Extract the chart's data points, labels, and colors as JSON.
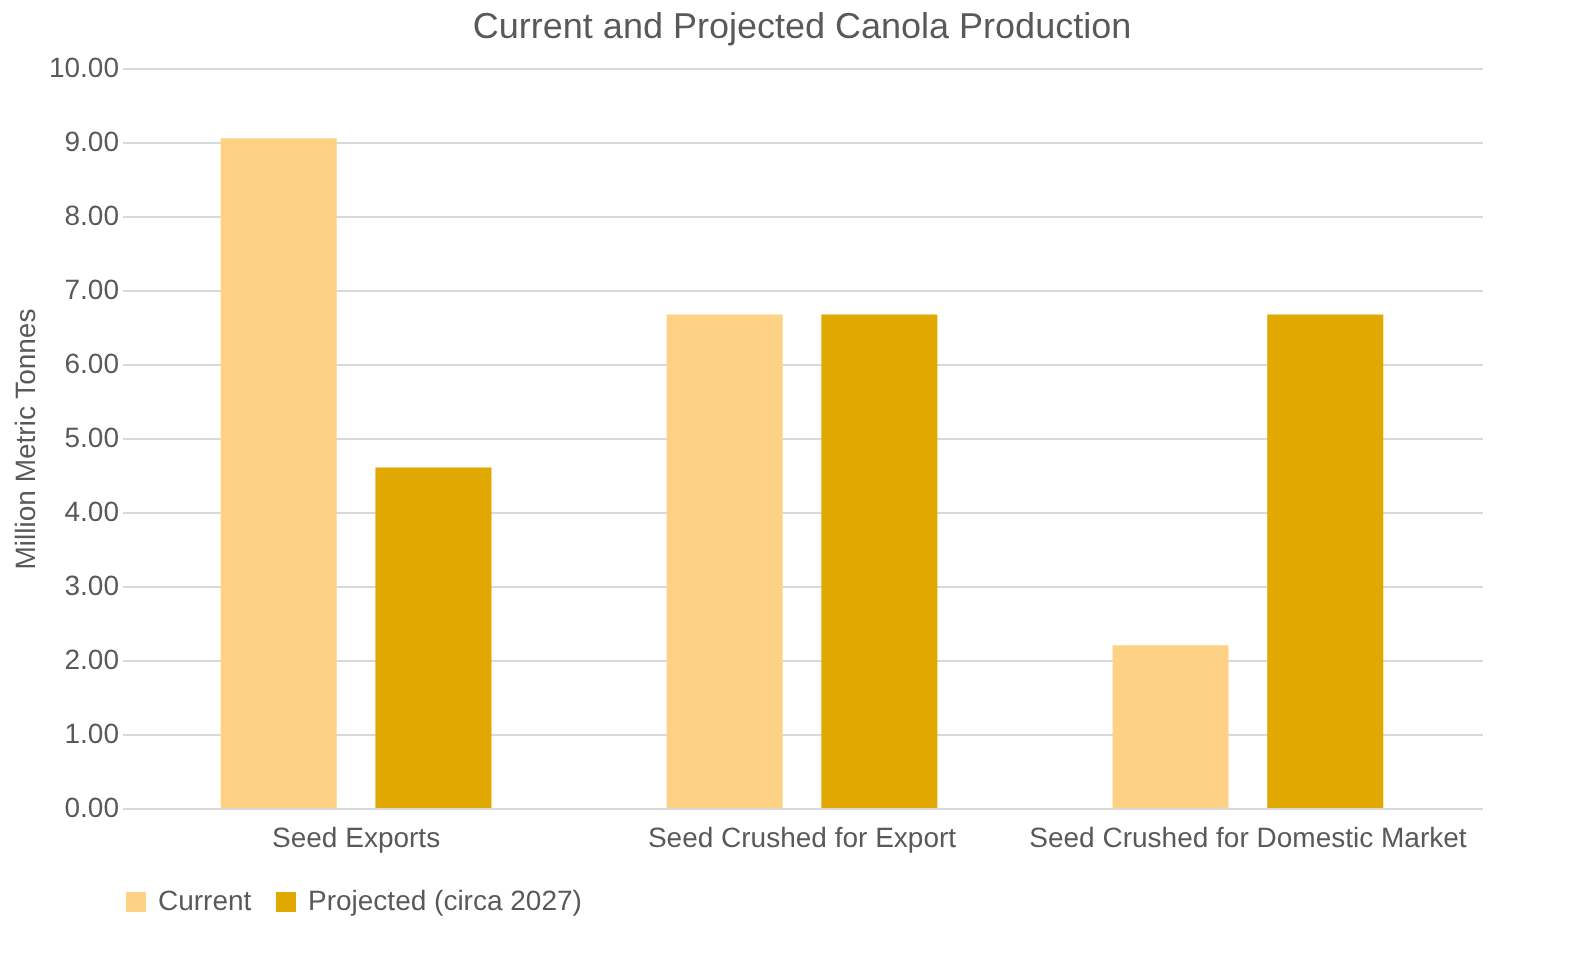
{
  "chart_data": {
    "type": "bar",
    "title": "Current and Projected Canola Production",
    "ylabel": "Million Metric Tonnes",
    "categories": [
      "Seed Exports",
      "Seed Crushed for Export",
      "Seed Crushed for Domestic Market"
    ],
    "series": [
      {
        "name": "Current",
        "color": "#fed285",
        "values": [
          9.05,
          6.67,
          2.2
        ]
      },
      {
        "name": "Projected (circa 2027)",
        "color": "#e0a800",
        "values": [
          4.6,
          6.67,
          6.67
        ]
      }
    ],
    "ylim": [
      0,
      10
    ],
    "yticks": [
      {
        "value": 0,
        "label": "0.00"
      },
      {
        "value": 1,
        "label": "1.00"
      },
      {
        "value": 2,
        "label": "2.00"
      },
      {
        "value": 3,
        "label": "3.00"
      },
      {
        "value": 4,
        "label": "4.00"
      },
      {
        "value": 5,
        "label": "5.00"
      },
      {
        "value": 6,
        "label": "6.00"
      },
      {
        "value": 7,
        "label": "7.00"
      },
      {
        "value": 8,
        "label": "8.00"
      },
      {
        "value": 9,
        "label": "9.00"
      },
      {
        "value": 10,
        "label": "10.00"
      }
    ],
    "grid": "y",
    "legend": "bottom"
  }
}
